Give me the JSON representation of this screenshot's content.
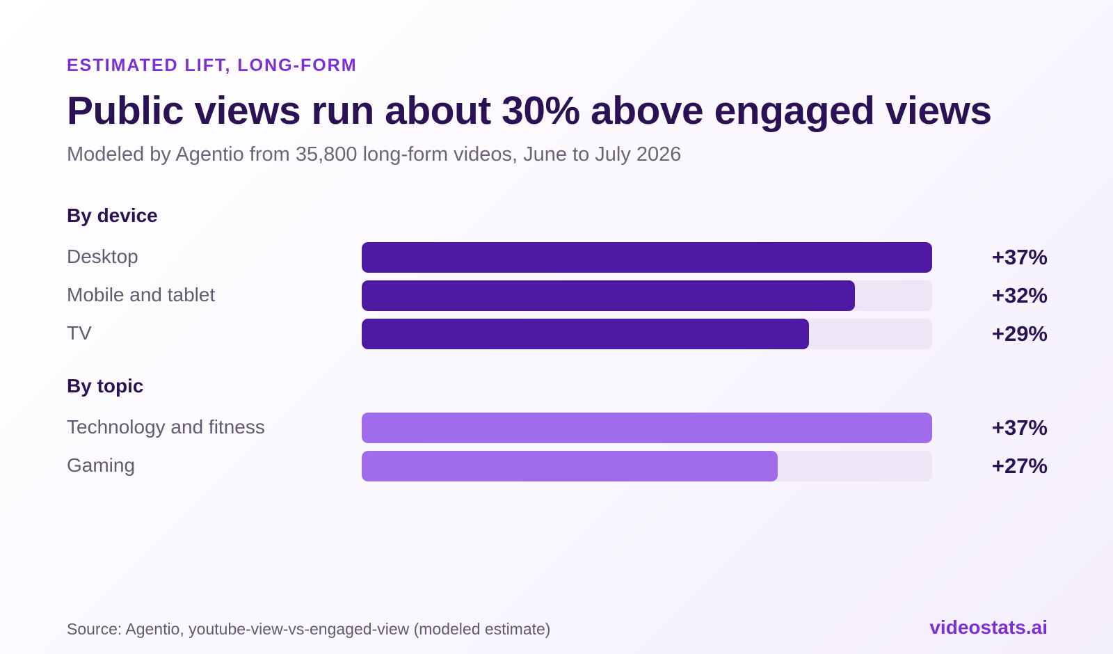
{
  "header": {
    "eyebrow": "ESTIMATED LIFT, LONG-FORM",
    "title": "Public views run about 30% above engaged views",
    "subtitle": "Modeled by Agentio from 35,800 long-form videos, June to July 2026"
  },
  "footer": {
    "source": "Source: Agentio, youtube-view-vs-engaged-view (modeled estimate)",
    "brand": "videostats.ai"
  },
  "colors": {
    "device_bar": "#4f1aa3",
    "topic_bar": "#a06cec",
    "track": "#ece6f6",
    "accent": "#7b2fd6",
    "title": "#2b1255"
  },
  "chart_data": {
    "type": "bar",
    "orientation": "horizontal",
    "xlim": [
      0,
      37
    ],
    "groups": [
      {
        "name": "By device",
        "categories": [
          "Desktop",
          "Mobile and tablet",
          "TV"
        ],
        "values": [
          37,
          32,
          29
        ],
        "labels": [
          "+37%",
          "+32%",
          "+29%"
        ],
        "color": "#4f1aa3"
      },
      {
        "name": "By topic",
        "categories": [
          "Technology and fitness",
          "Gaming"
        ],
        "values": [
          37,
          27
        ],
        "labels": [
          "+37%",
          "+27%"
        ],
        "color": "#a06cec"
      }
    ]
  }
}
